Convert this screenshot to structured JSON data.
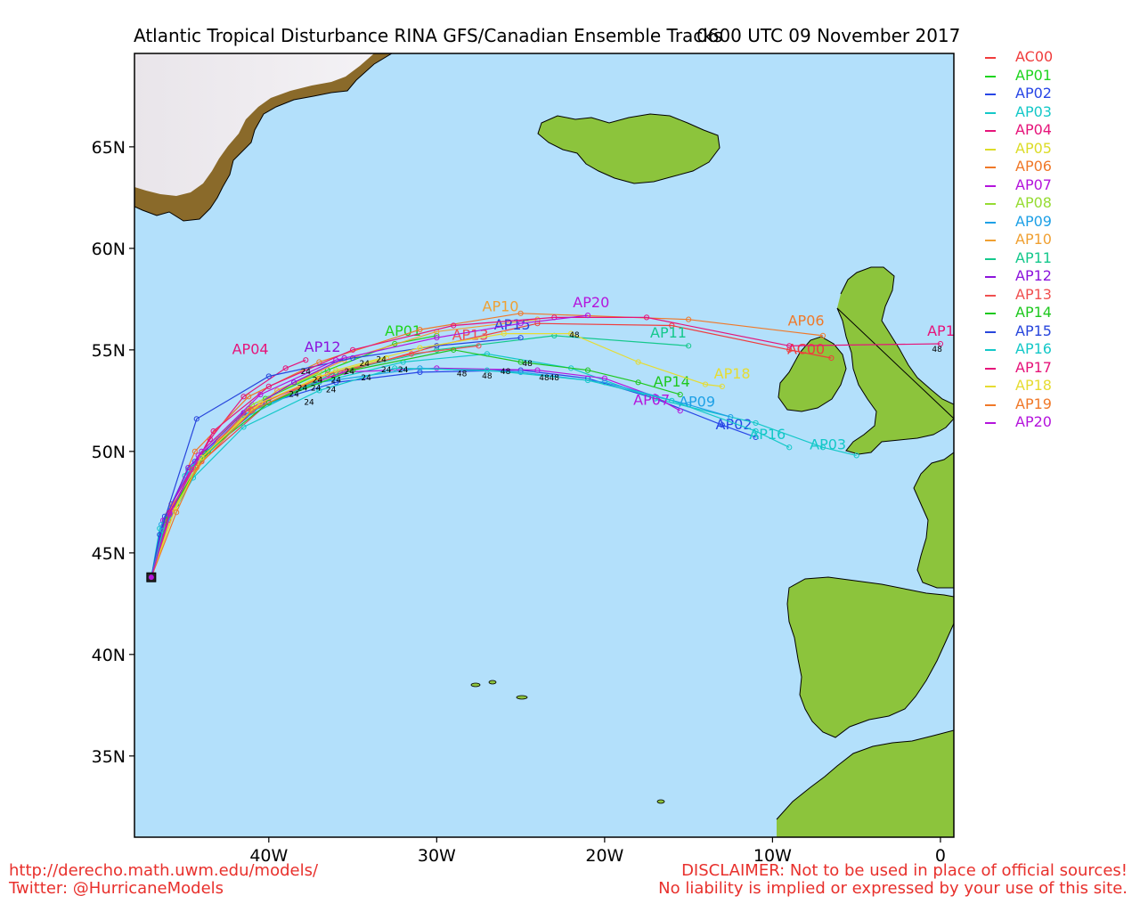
{
  "title": "Atlantic Tropical Disturbance RINA GFS/Canadian Ensemble Tracks",
  "subtitle": "0600 UTC 09 November 2017",
  "footer": {
    "url": "http://derecho.math.uwm.edu/models/",
    "twitter": "Twitter: @HurricaneModels",
    "disclaimer1": "DISCLAIMER: Not to be used in place of official sources!",
    "disclaimer2": "No liability is implied or expressed by your use of this site."
  },
  "map": {
    "lon_range": [
      -48.0,
      0.8
    ],
    "lat_range": [
      31,
      69.6
    ],
    "lat_ticks": [
      {
        "v": 35,
        "label": "35N"
      },
      {
        "v": 40,
        "label": "40N"
      },
      {
        "v": 45,
        "label": "45N"
      },
      {
        "v": 50,
        "label": "50N"
      },
      {
        "v": 55,
        "label": "55N"
      },
      {
        "v": 60,
        "label": "60N"
      },
      {
        "v": 65,
        "label": "65N"
      }
    ],
    "lon_ticks": [
      {
        "v": -40,
        "label": "40W"
      },
      {
        "v": -30,
        "label": "30W"
      },
      {
        "v": -20,
        "label": "20W"
      },
      {
        "v": -10,
        "label": "10W"
      },
      {
        "v": 0,
        "label": "0"
      }
    ],
    "ocean_color": "#b3e0fb",
    "land_color": "#8cc43c",
    "ice_color": "#ede8ee",
    "origin": [
      -47.0,
      43.8
    ]
  },
  "chart_data": {
    "type": "map-tracks",
    "title": "Atlantic Tropical Disturbance RINA GFS/Canadian Ensemble Tracks",
    "subtitle": "0600 UTC 09 November 2017",
    "hour_labels": [
      {
        "text": "24",
        "lon": -37.1,
        "lat": 53.4
      },
      {
        "text": "24",
        "lon": -37.2,
        "lat": 53.0
      },
      {
        "text": "24",
        "lon": -36.0,
        "lat": 53.4
      },
      {
        "text": "24",
        "lon": -36.3,
        "lat": 52.9
      },
      {
        "text": "24",
        "lon": -35.2,
        "lat": 53.8
      },
      {
        "text": "24",
        "lon": -34.2,
        "lat": 53.5
      },
      {
        "text": "24",
        "lon": -34.3,
        "lat": 54.2
      },
      {
        "text": "24",
        "lon": -33.0,
        "lat": 53.9
      },
      {
        "text": "24",
        "lon": -32.0,
        "lat": 53.9
      },
      {
        "text": "24",
        "lon": -33.3,
        "lat": 54.4
      },
      {
        "text": "24",
        "lon": -38.0,
        "lat": 53.0
      },
      {
        "text": "24",
        "lon": -38.5,
        "lat": 52.7
      },
      {
        "text": "24",
        "lon": -37.6,
        "lat": 52.3
      },
      {
        "text": "24",
        "lon": -37.8,
        "lat": 53.8
      },
      {
        "text": "48",
        "lon": -28.5,
        "lat": 53.7
      },
      {
        "text": "48",
        "lon": -27.0,
        "lat": 53.6
      },
      {
        "text": "48",
        "lon": -25.9,
        "lat": 53.8
      },
      {
        "text": "48",
        "lon": -24.6,
        "lat": 54.2
      },
      {
        "text": "48",
        "lon": -23.6,
        "lat": 53.5
      },
      {
        "text": "48",
        "lon": -23.0,
        "lat": 53.5
      },
      {
        "text": "48",
        "lon": -21.8,
        "lat": 55.6
      },
      {
        "text": "48",
        "lon": -0.2,
        "lat": 54.9
      }
    ],
    "series": [
      {
        "name": "AC00",
        "color": "#f03c3c",
        "points": [
          [
            -47.0,
            43.8
          ],
          [
            -45.8,
            47.0
          ],
          [
            -44.0,
            49.5
          ],
          [
            -40.0,
            52.4
          ],
          [
            -36.0,
            53.8
          ],
          [
            -30.0,
            55.2
          ],
          [
            -24.0,
            56.3
          ],
          [
            -16.0,
            56.2
          ],
          [
            -9.0,
            55.0
          ],
          [
            -6.5,
            54.6
          ]
        ],
        "label": {
          "lon": -8.0,
          "lat": 54.8
        }
      },
      {
        "name": "AP01",
        "color": "#1ed41e",
        "points": [
          [
            -47.0,
            43.8
          ],
          [
            -45.5,
            47.4
          ],
          [
            -43.6,
            50.0
          ],
          [
            -40.2,
            52.6
          ],
          [
            -36.5,
            54.0
          ],
          [
            -32.5,
            55.3
          ],
          [
            -30.0,
            55.7
          ]
        ],
        "label": {
          "lon": -32.0,
          "lat": 55.7
        }
      },
      {
        "name": "AP02",
        "color": "#2846e6",
        "points": [
          [
            -47.0,
            43.8
          ],
          [
            -46.2,
            46.8
          ],
          [
            -44.4,
            49.5
          ],
          [
            -40.4,
            52.3
          ],
          [
            -36.0,
            53.4
          ],
          [
            -31.0,
            53.9
          ],
          [
            -25.0,
            54.0
          ],
          [
            -21.0,
            53.6
          ],
          [
            -17.0,
            52.6
          ],
          [
            -13.0,
            51.3
          ],
          [
            -11.0,
            50.7
          ]
        ],
        "label": {
          "lon": -12.3,
          "lat": 51.1
        }
      },
      {
        "name": "AP03",
        "color": "#14c8c8",
        "points": [
          [
            -47.0,
            43.8
          ],
          [
            -46.5,
            46.2
          ],
          [
            -45.0,
            48.8
          ],
          [
            -41.8,
            51.5
          ],
          [
            -37.5,
            53.3
          ],
          [
            -32.0,
            54.4
          ],
          [
            -27.0,
            54.8
          ],
          [
            -22.0,
            54.1
          ],
          [
            -17.0,
            52.6
          ],
          [
            -11.0,
            51.4
          ],
          [
            -7.0,
            50.2
          ],
          [
            -5.0,
            49.8
          ]
        ],
        "label": {
          "lon": -6.7,
          "lat": 50.1
        }
      },
      {
        "name": "AP04",
        "color": "#e6147a",
        "points": [
          [
            -47.0,
            43.8
          ],
          [
            -45.8,
            47.4
          ],
          [
            -43.5,
            50.6
          ],
          [
            -41.5,
            52.7
          ],
          [
            -39.0,
            54.1
          ],
          [
            -37.8,
            54.5
          ]
        ],
        "label": {
          "lon": -41.1,
          "lat": 54.8
        }
      },
      {
        "name": "AP05",
        "color": "#dcdc28",
        "points": [
          [
            -47.0,
            43.8
          ],
          [
            -45.6,
            47.2
          ],
          [
            -44.2,
            49.6
          ],
          [
            -41.0,
            52.1
          ],
          [
            -37.0,
            53.7
          ],
          [
            -33.0,
            54.6
          ]
        ],
        "label": null
      },
      {
        "name": "AP06",
        "color": "#f07828",
        "points": [
          [
            -47.0,
            43.8
          ],
          [
            -46.0,
            46.9
          ],
          [
            -44.4,
            50.0
          ],
          [
            -41.2,
            52.7
          ],
          [
            -37.0,
            54.4
          ],
          [
            -31.0,
            56.0
          ],
          [
            -25.0,
            56.8
          ],
          [
            -15.0,
            56.5
          ],
          [
            -7.0,
            55.7
          ]
        ],
        "label": {
          "lon": -8.0,
          "lat": 56.2
        }
      },
      {
        "name": "AP07",
        "color": "#b414dc",
        "points": [
          [
            -47.0,
            43.8
          ],
          [
            -46.3,
            46.6
          ],
          [
            -44.2,
            49.8
          ],
          [
            -40.0,
            52.6
          ],
          [
            -35.5,
            53.9
          ],
          [
            -30.0,
            54.1
          ],
          [
            -24.0,
            54.0
          ],
          [
            -20.0,
            53.6
          ],
          [
            -17.0,
            52.7
          ],
          [
            -15.5,
            52.0
          ]
        ],
        "label": {
          "lon": -17.2,
          "lat": 52.3
        }
      },
      {
        "name": "AP08",
        "color": "#96dc32",
        "points": [
          [
            -47.0,
            43.8
          ],
          [
            -46.0,
            46.8
          ],
          [
            -44.0,
            50.0
          ],
          [
            -41.0,
            52.3
          ],
          [
            -37.0,
            53.9
          ]
        ],
        "label": null
      },
      {
        "name": "AP09",
        "color": "#1ea0e6",
        "points": [
          [
            -47.0,
            43.8
          ],
          [
            -46.4,
            46.4
          ],
          [
            -44.8,
            49.1
          ],
          [
            -41.5,
            51.8
          ],
          [
            -37.0,
            53.4
          ],
          [
            -31.0,
            54.1
          ],
          [
            -25.0,
            53.9
          ],
          [
            -20.0,
            53.4
          ],
          [
            -15.0,
            52.3
          ],
          [
            -12.5,
            51.7
          ]
        ],
        "label": {
          "lon": -14.5,
          "lat": 52.2
        }
      },
      {
        "name": "AP10",
        "color": "#f0a032",
        "points": [
          [
            -47.0,
            43.8
          ],
          [
            -45.8,
            47.3
          ],
          [
            -43.0,
            50.6
          ],
          [
            -39.5,
            53.0
          ],
          [
            -35.5,
            54.5
          ],
          [
            -30.0,
            55.9
          ],
          [
            -24.0,
            56.5
          ]
        ],
        "label": {
          "lon": -26.2,
          "lat": 56.9
        }
      },
      {
        "name": "AP11",
        "color": "#14c88c",
        "points": [
          [
            -47.0,
            43.8
          ],
          [
            -46.2,
            46.5
          ],
          [
            -44.5,
            49.2
          ],
          [
            -41.0,
            52.0
          ],
          [
            -36.0,
            53.9
          ],
          [
            -30.0,
            55.0
          ],
          [
            -23.0,
            55.7
          ],
          [
            -15.0,
            55.2
          ]
        ],
        "label": {
          "lon": -16.2,
          "lat": 55.6
        }
      },
      {
        "name": "AP12",
        "color": "#8c14dc",
        "points": [
          [
            -47.0,
            43.8
          ],
          [
            -46.2,
            46.6
          ],
          [
            -44.8,
            49.2
          ],
          [
            -41.5,
            51.9
          ],
          [
            -38.5,
            53.4
          ],
          [
            -35.5,
            54.6
          ]
        ],
        "label": {
          "lon": -36.8,
          "lat": 54.9
        }
      },
      {
        "name": "AP13",
        "color": "#f05050",
        "points": [
          [
            -47.0,
            43.8
          ],
          [
            -46.0,
            46.6
          ],
          [
            -44.6,
            49.1
          ],
          [
            -41.2,
            52.1
          ],
          [
            -36.5,
            53.8
          ],
          [
            -31.5,
            54.8
          ],
          [
            -27.5,
            55.2
          ]
        ],
        "label": {
          "lon": -28.0,
          "lat": 55.5
        }
      },
      {
        "name": "AP14",
        "color": "#1ec81e",
        "points": [
          [
            -47.0,
            43.8
          ],
          [
            -46.0,
            46.8
          ],
          [
            -43.8,
            49.9
          ],
          [
            -40.0,
            52.4
          ],
          [
            -35.0,
            54.0
          ],
          [
            -29.0,
            55.0
          ],
          [
            -25.0,
            54.4
          ],
          [
            -21.0,
            54.0
          ],
          [
            -18.0,
            53.4
          ],
          [
            -15.5,
            52.8
          ]
        ],
        "label": {
          "lon": -16.0,
          "lat": 53.2
        }
      },
      {
        "name": "AP15",
        "color": "#2846dc",
        "points": [
          [
            -47.0,
            43.8
          ],
          [
            -46.5,
            45.9
          ],
          [
            -44.3,
            51.6
          ],
          [
            -40.0,
            53.7
          ],
          [
            -35.0,
            54.6
          ],
          [
            -30.0,
            55.2
          ],
          [
            -25.0,
            55.6
          ]
        ],
        "label": {
          "lon": -25.5,
          "lat": 56.0
        }
      },
      {
        "name": "AP16",
        "color": "#14c8c8",
        "points": [
          [
            -47.0,
            43.8
          ],
          [
            -46.3,
            46.1
          ],
          [
            -44.5,
            48.7
          ],
          [
            -41.5,
            51.2
          ],
          [
            -37.0,
            53.0
          ],
          [
            -32.5,
            54.1
          ],
          [
            -27.0,
            54.0
          ],
          [
            -21.0,
            53.5
          ],
          [
            -16.0,
            52.5
          ],
          [
            -11.0,
            51.0
          ],
          [
            -9.0,
            50.2
          ]
        ],
        "label": {
          "lon": -10.3,
          "lat": 50.6
        }
      },
      {
        "name": "AP17",
        "color": "#e6147a",
        "points": [
          [
            -47.0,
            43.8
          ],
          [
            -45.9,
            47.0
          ],
          [
            -43.3,
            51.0
          ],
          [
            -40.0,
            53.2
          ],
          [
            -35.0,
            55.0
          ],
          [
            -29.0,
            56.2
          ],
          [
            -23.0,
            56.6
          ],
          [
            -17.5,
            56.6
          ],
          [
            -9.0,
            55.2
          ],
          [
            0.0,
            55.3
          ]
        ],
        "label": {
          "lon": 0.3,
          "lat": 55.7
        }
      },
      {
        "name": "AP18",
        "color": "#e6dc32",
        "points": [
          [
            -47.0,
            43.8
          ],
          [
            -45.6,
            47.1
          ],
          [
            -44.0,
            49.7
          ],
          [
            -40.5,
            52.4
          ],
          [
            -36.0,
            54.0
          ],
          [
            -31.0,
            55.1
          ],
          [
            -26.0,
            55.8
          ],
          [
            -22.0,
            55.8
          ],
          [
            -18.0,
            54.4
          ],
          [
            -14.0,
            53.3
          ],
          [
            -13.0,
            53.2
          ]
        ],
        "label": {
          "lon": -12.4,
          "lat": 53.6
        }
      },
      {
        "name": "AP19",
        "color": "#f07828",
        "points": [
          [
            -47.0,
            43.8
          ],
          [
            -45.5,
            47.0
          ],
          [
            -44.3,
            49.2
          ],
          [
            -41.0,
            52.0
          ],
          [
            -37.0,
            53.6
          ]
        ],
        "label": null
      },
      {
        "name": "AP20",
        "color": "#b414dc",
        "points": [
          [
            -47.0,
            43.8
          ],
          [
            -45.9,
            46.9
          ],
          [
            -44.0,
            50.0
          ],
          [
            -40.5,
            52.8
          ],
          [
            -36.0,
            54.5
          ],
          [
            -30.0,
            55.6
          ],
          [
            -25.0,
            56.3
          ],
          [
            -21.0,
            56.7
          ]
        ],
        "label": {
          "lon": -20.8,
          "lat": 57.1
        }
      }
    ]
  }
}
